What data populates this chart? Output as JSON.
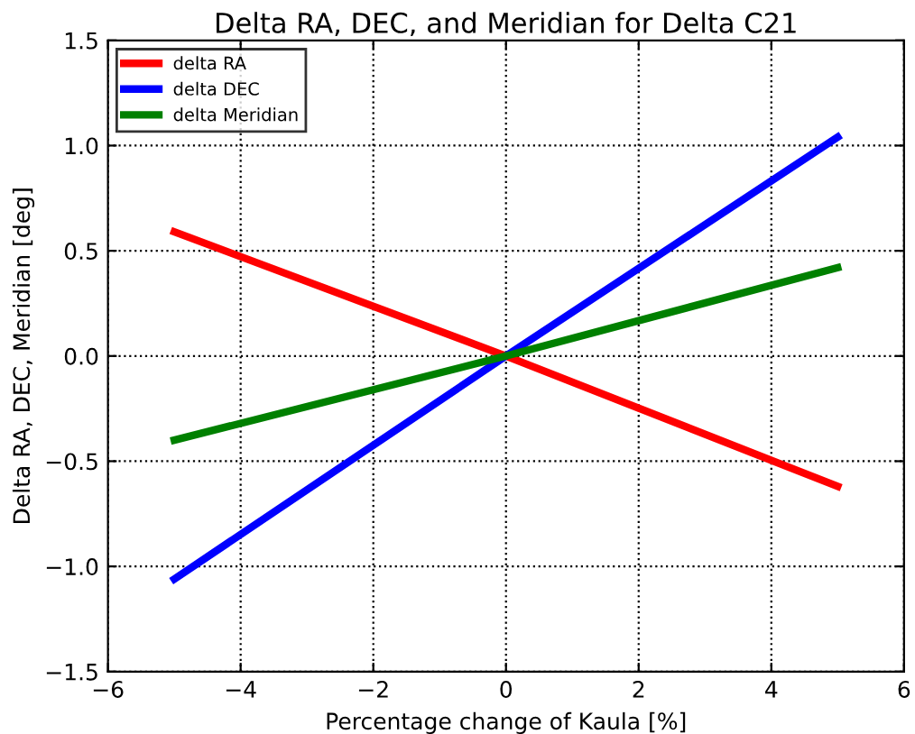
{
  "chart_data": {
    "type": "line",
    "title": "Delta RA, DEC, and Meridian for Delta C21",
    "xlabel": "Percentage change of Kaula [%]",
    "ylabel": "Delta RA, DEC, Meridian [deg]",
    "x": [
      -5,
      0,
      5
    ],
    "series": [
      {
        "name": "delta RA",
        "color": "#ff0000",
        "values": [
          0.59,
          0,
          -0.62
        ]
      },
      {
        "name": "delta DEC",
        "color": "#0000ff",
        "values": [
          -1.06,
          0,
          1.04
        ]
      },
      {
        "name": "delta Meridian",
        "color": "#008000",
        "values": [
          -0.4,
          0,
          0.42
        ]
      }
    ],
    "xlim": [
      -6,
      6
    ],
    "xticks": [
      {
        "value": -6,
        "label": "−6"
      },
      {
        "value": -4,
        "label": "−4"
      },
      {
        "value": -2,
        "label": "−2"
      },
      0,
      2,
      4,
      6
    ],
    "ylim": [
      -1.5,
      1.5
    ],
    "yticks": [
      {
        "value": -1.5,
        "label": "−1.5"
      },
      {
        "value": -1.0,
        "label": "−1.0"
      },
      {
        "value": -0.5,
        "label": "−0.5"
      },
      {
        "value": 0,
        "label": "0.0"
      },
      {
        "value": 0.5,
        "label": "0.5"
      },
      {
        "value": 1.0,
        "label": "1.0"
      },
      {
        "value": 1.5,
        "label": "1.5"
      }
    ],
    "grid": true,
    "legend": "top left",
    "line_style": "solid"
  }
}
